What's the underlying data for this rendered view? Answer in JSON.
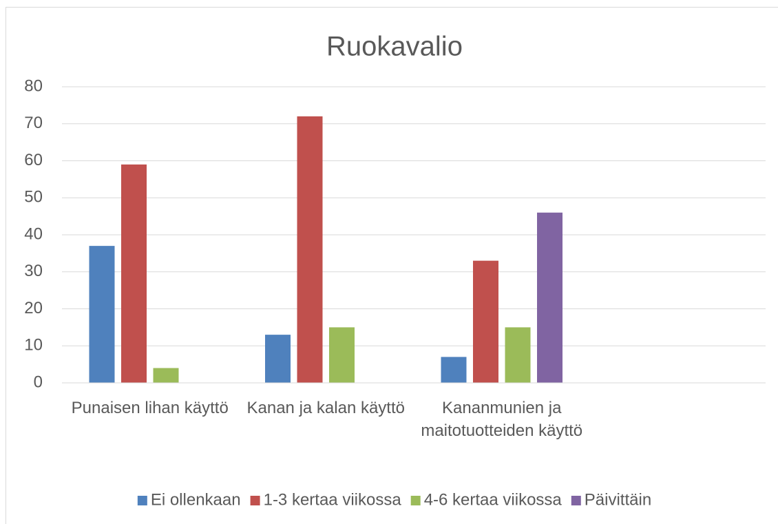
{
  "chart_data": {
    "type": "bar",
    "title": "Ruokavalio",
    "categories": [
      "Punaisen lihan käyttö",
      "Kanan ja kalan käyttö",
      "Kananmunien ja maitotuotteiden käyttö",
      null
    ],
    "series": [
      {
        "name": "Ei ollenkaan",
        "color": "#4f81bd",
        "values": [
          37,
          13,
          7,
          null
        ]
      },
      {
        "name": "1-3 kertaa viikossa",
        "color": "#c0504d",
        "values": [
          59,
          72,
          33,
          null
        ]
      },
      {
        "name": "4-6 kertaa viikossa",
        "color": "#9bbb59",
        "values": [
          4,
          15,
          15,
          null
        ]
      },
      {
        "name": "Päivittäin",
        "color": "#8064a2",
        "values": [
          null,
          null,
          46,
          null
        ]
      }
    ],
    "ylim": [
      0,
      80
    ],
    "yticks": [
      0,
      10,
      20,
      30,
      40,
      50,
      60,
      70,
      80
    ],
    "grid": true,
    "legend": "bottom"
  }
}
